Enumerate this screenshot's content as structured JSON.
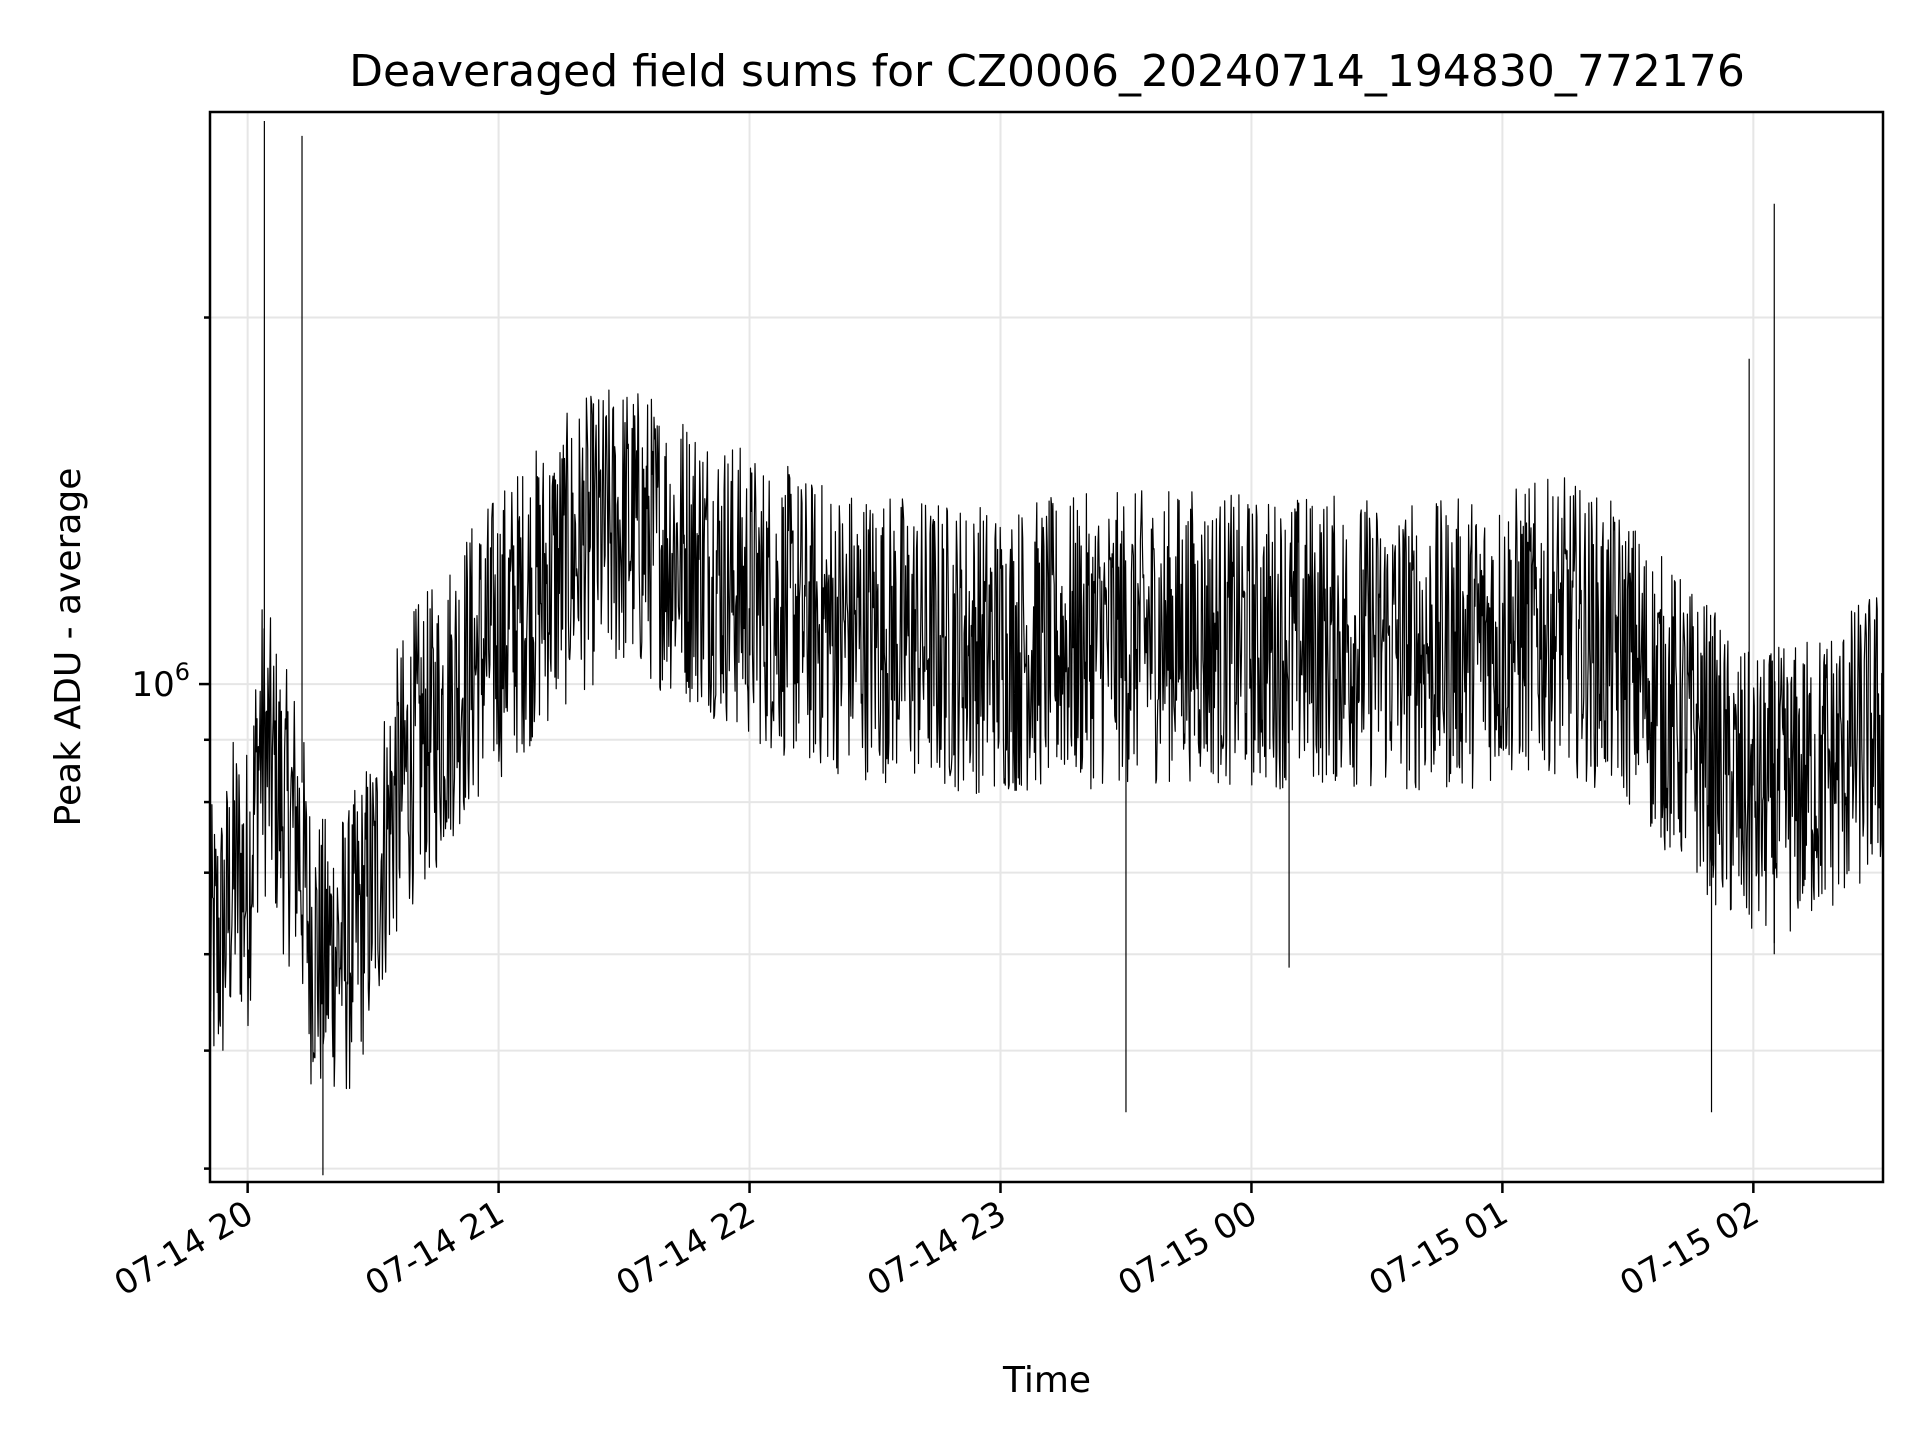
{
  "chart_data": {
    "type": "line",
    "title": "Deaveraged field sums for CZ0006_20240714_194830_772176",
    "xlabel": "Time",
    "ylabel": "Peak ADU - average",
    "y_scale": "log",
    "ylim": [
      390000,
      2950000
    ],
    "xlim": [
      "2024-07-14 19:51",
      "2024-07-15 02:31"
    ],
    "x_ticks": [
      "07-14 20",
      "07-14 21",
      "07-14 22",
      "07-14 23",
      "07-15 00",
      "07-15 01",
      "07-15 02"
    ],
    "x_tick_times": [
      "2024-07-14 20:00",
      "2024-07-14 21:00",
      "2024-07-14 22:00",
      "2024-07-14 23:00",
      "2024-07-15 00:00",
      "2024-07-15 01:00",
      "2024-07-15 02:00"
    ],
    "y_tick_label_base": "10",
    "y_tick_label_exp": "6",
    "y_tick_value": 1000000,
    "grid": true,
    "line_color": "#000000",
    "series": [
      {
        "x": [
          "2024-07-14 19:51",
          "2024-07-14 19:54",
          "2024-07-14 19:57",
          "2024-07-14 20:00",
          "2024-07-14 20:03",
          "2024-07-14 20:06",
          "2024-07-14 20:09",
          "2024-07-14 20:12",
          "2024-07-14 20:15",
          "2024-07-14 20:18",
          "2024-07-14 20:21",
          "2024-07-14 20:24",
          "2024-07-14 20:27",
          "2024-07-14 20:30",
          "2024-07-14 20:35",
          "2024-07-14 20:40",
          "2024-07-14 20:45",
          "2024-07-14 20:50",
          "2024-07-14 20:55",
          "2024-07-14 21:00",
          "2024-07-14 21:10",
          "2024-07-14 21:20",
          "2024-07-14 21:30",
          "2024-07-14 21:40",
          "2024-07-14 21:50",
          "2024-07-14 22:00",
          "2024-07-14 22:15",
          "2024-07-14 22:30",
          "2024-07-14 22:45",
          "2024-07-14 23:00",
          "2024-07-14 23:15",
          "2024-07-14 23:30",
          "2024-07-14 23:45",
          "2024-07-15 00:00",
          "2024-07-15 00:15",
          "2024-07-15 00:30",
          "2024-07-15 00:45",
          "2024-07-15 01:00",
          "2024-07-15 01:15",
          "2024-07-15 01:30",
          "2024-07-15 01:40",
          "2024-07-15 01:50",
          "2024-07-15 01:55",
          "2024-07-15 02:00",
          "2024-07-15 02:10",
          "2024-07-15 02:20",
          "2024-07-15 02:31"
        ],
        "values": [
          600000,
          620000,
          700000,
          680000,
          900000,
          850000,
          780000,
          760000,
          620000,
          590000,
          610000,
          600000,
          640000,
          680000,
          800000,
          880000,
          920000,
          1000000,
          1050000,
          1100000,
          1200000,
          1300000,
          1350000,
          1300000,
          1250000,
          1180000,
          1120000,
          1100000,
          1080000,
          1070000,
          1080000,
          1090000,
          1100000,
          1080000,
          1090000,
          1080000,
          1070000,
          1100000,
          1120000,
          1050000,
          950000,
          880000,
          820000,
          800000,
          820000,
          860000,
          920000
        ]
      }
    ],
    "spikes": [
      {
        "x": "2024-07-14 20:04",
        "max": 2900000,
        "min": 960000
      },
      {
        "x": "2024-07-14 20:13",
        "max": 2820000,
        "min": 830000
      },
      {
        "x": "2024-07-14 20:18",
        "min": 395000
      },
      {
        "x": "2024-07-14 23:30",
        "min": 445000
      },
      {
        "x": "2024-07-15 00:09",
        "min": 585000
      },
      {
        "x": "2024-07-15 01:50",
        "min": 445000
      },
      {
        "x": "2024-07-15 01:59",
        "max": 1850000,
        "min": 800000
      },
      {
        "x": "2024-07-15 02:05",
        "max": 2480000,
        "min": 600000
      }
    ]
  }
}
